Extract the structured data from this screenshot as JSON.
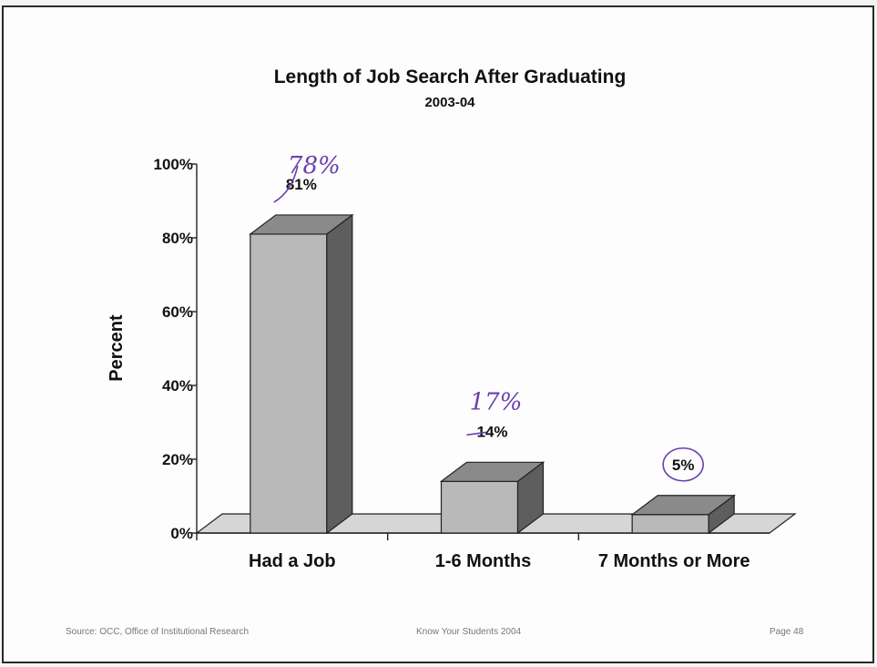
{
  "chart_data": {
    "type": "bar",
    "title": "Length of Job Search After Graduating",
    "subtitle": "2003-04",
    "ylabel": "Percent",
    "xlabel": "",
    "categories": [
      "Had a Job",
      "1-6 Months",
      "7 Months or More"
    ],
    "values": [
      81,
      14,
      5
    ],
    "data_labels": [
      "81%",
      "14%",
      "5%"
    ],
    "ylim": [
      0,
      100
    ],
    "yticks": [
      "0%",
      "20%",
      "40%",
      "60%",
      "80%",
      "100%"
    ],
    "ytick_values": [
      0,
      20,
      40,
      60,
      80,
      100
    ],
    "grid": false,
    "style": "3d",
    "handwritten_annotations": [
      "78%",
      "17%"
    ],
    "colors": {
      "front": "#b9b9b9",
      "top": "#8a8a8a",
      "side": "#5e5e5e",
      "floor": "#d6d6d6",
      "ink": "#6a3fb0"
    }
  },
  "footer": {
    "source": "Source: OCC, Office of Institutional Research",
    "center": "Know Your Students 2004",
    "page": "Page 48"
  }
}
